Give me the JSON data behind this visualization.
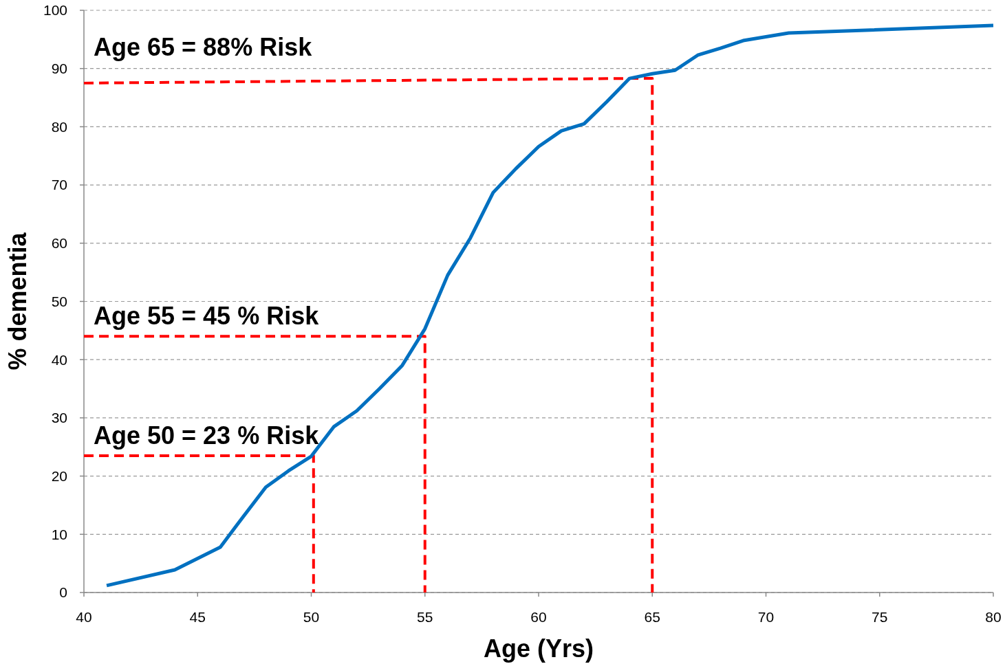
{
  "chart_data": {
    "type": "line",
    "xlabel": "Age (Yrs)",
    "ylabel": "% dementia",
    "xlim": [
      40,
      80
    ],
    "xticks": [
      40,
      45,
      50,
      55,
      60,
      65,
      70,
      75,
      80
    ],
    "ylim": [
      0,
      100
    ],
    "yticks": [
      0,
      10,
      20,
      30,
      40,
      50,
      60,
      70,
      80,
      90,
      100
    ],
    "grid": "y",
    "marker": "none",
    "series": [
      {
        "color": "#0070c0",
        "line_style": "solid",
        "x": [
          41,
          44,
          46,
          47,
          48,
          49,
          50,
          51,
          52,
          53,
          54,
          55,
          56,
          57,
          58,
          59,
          60,
          61,
          62,
          63,
          64,
          65,
          66,
          67,
          68,
          69,
          71,
          80
        ],
        "values": [
          1.2,
          3.9,
          7.8,
          13,
          18.1,
          20.9,
          23.4,
          28.5,
          31.2,
          35,
          39,
          45.3,
          54.5,
          60.9,
          68.7,
          72.8,
          76.6,
          79.3,
          80.5,
          84.3,
          88.3,
          89.1,
          89.7,
          92.3,
          93.5,
          94.8,
          96.1,
          97.4
        ]
      },
      {
        "color": "#ff0000",
        "line_style": "dashed",
        "x": [
          40,
          50.1,
          50.1
        ],
        "values": [
          23.5,
          23.5,
          0
        ]
      },
      {
        "color": "#ff0000",
        "line_style": "dashed",
        "x": [
          40,
          55,
          55
        ],
        "values": [
          44,
          44,
          0
        ]
      },
      {
        "color": "#ff0000",
        "line_style": "dashed",
        "x": [
          40,
          64,
          65,
          65
        ],
        "values": [
          87.5,
          88.3,
          88.3,
          0
        ]
      }
    ],
    "annotations": [
      {
        "text": "Age 65 = 88% Risk",
        "y": 87.5
      },
      {
        "text": "Age 55 = 45 % Risk",
        "y": 44
      },
      {
        "text": "Age 50 = 23 % Risk",
        "y": 23.5
      }
    ]
  }
}
